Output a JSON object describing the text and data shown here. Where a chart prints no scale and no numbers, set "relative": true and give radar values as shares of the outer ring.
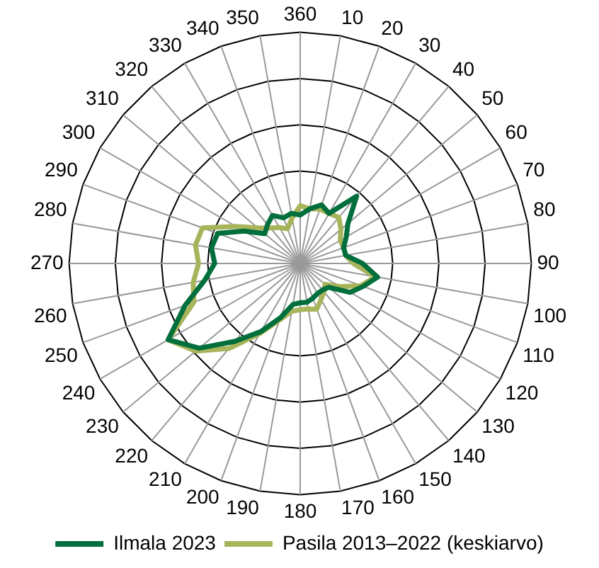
{
  "chart_data": {
    "type": "radar",
    "relative": true,
    "legend": "bottom",
    "grid": true,
    "marker": "none",
    "categories": [
      "360",
      "10",
      "20",
      "30",
      "40",
      "50",
      "60",
      "70",
      "80",
      "90",
      "100",
      "110",
      "120",
      "130",
      "140",
      "150",
      "160",
      "170",
      "180",
      "190",
      "200",
      "210",
      "220",
      "230",
      "240",
      "250",
      "260",
      "270",
      "280",
      "290",
      "300",
      "310",
      "320",
      "330",
      "340",
      "350"
    ],
    "series": [
      {
        "name": "Ilmala 2023",
        "color": "#006f3c",
        "values": [
          0.21,
          0.24,
          0.27,
          0.25,
          0.38,
          0.27,
          0.23,
          0.2,
          0.2,
          0.27,
          0.34,
          0.29,
          0.25,
          0.16,
          0.15,
          0.15,
          0.16,
          0.17,
          0.17,
          0.18,
          0.25,
          0.34,
          0.44,
          0.57,
          0.66,
          0.53,
          0.42,
          0.37,
          0.39,
          0.38,
          0.28,
          0.2,
          0.22,
          0.24,
          0.21,
          0.22
        ]
      },
      {
        "name": "Pasila 2013–2022 (keskiarvo)",
        "color": "#a8b45a",
        "values": [
          0.25,
          0.24,
          0.25,
          0.25,
          0.26,
          0.23,
          0.2,
          0.2,
          0.2,
          0.23,
          0.33,
          0.28,
          0.2,
          0.14,
          0.16,
          0.18,
          0.21,
          0.2,
          0.2,
          0.21,
          0.26,
          0.35,
          0.48,
          0.59,
          0.66,
          0.49,
          0.47,
          0.44,
          0.46,
          0.45,
          0.32,
          0.24,
          0.2,
          0.18,
          0.16,
          0.2
        ]
      }
    ]
  }
}
